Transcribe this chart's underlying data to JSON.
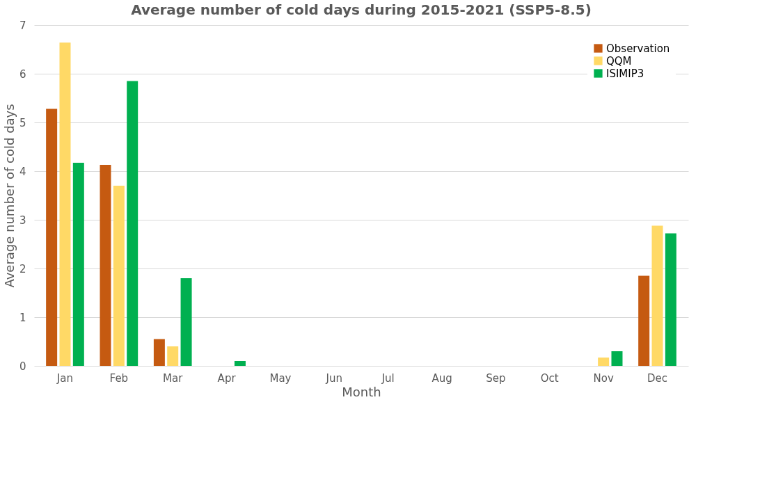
{
  "chart_data": {
    "type": "bar",
    "title": "Average number of cold days during 2015-2021 (SSP5-8.5)",
    "xlabel": "Month",
    "ylabel": "Average number of cold days",
    "categories": [
      "Jan",
      "Feb",
      "Mar",
      "Apr",
      "May",
      "Jun",
      "Jul",
      "Aug",
      "Sep",
      "Oct",
      "Nov",
      "Dec"
    ],
    "series": [
      {
        "name": "Observation",
        "color": "#c55a11",
        "values": [
          5.28,
          4.13,
          0.55,
          0,
          0,
          0,
          0,
          0,
          0,
          0,
          0,
          1.85
        ]
      },
      {
        "name": "QQM",
        "color": "#ffd966",
        "values": [
          6.64,
          3.7,
          0.4,
          0,
          0,
          0,
          0,
          0,
          0,
          0,
          0.17,
          2.88
        ]
      },
      {
        "name": "ISIMIP3",
        "color": "#00b050",
        "values": [
          4.17,
          5.85,
          1.8,
          0.1,
          0,
          0,
          0,
          0,
          0,
          0,
          0.3,
          2.72
        ]
      }
    ],
    "ylim": [
      0,
      7
    ],
    "yticks": [
      0,
      1,
      2,
      3,
      4,
      5,
      6,
      7
    ],
    "grid": "y",
    "legend": "top right"
  }
}
